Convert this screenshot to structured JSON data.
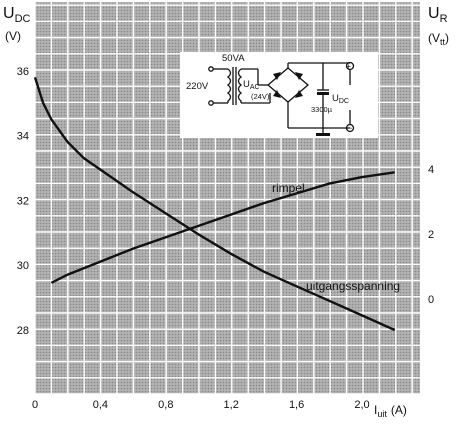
{
  "chart_data": {
    "type": "line",
    "x": {
      "label_main": "I",
      "label_sub": "uit",
      "unit": "(A)",
      "range": [
        0,
        2.2
      ],
      "ticks": [
        "0",
        "0,4",
        "0,8",
        "1,2",
        "1,6",
        "2,0"
      ]
    },
    "y_left": {
      "label_main": "U",
      "label_sub": "DC",
      "unit": "(V)",
      "range": [
        26.6,
        38.4
      ],
      "ticks": [
        "28",
        "30",
        "32",
        "34",
        "36"
      ]
    },
    "y_right": {
      "label_main": "U",
      "label_sub": "R",
      "unit_prefix": "(V",
      "unit_sub": "tt",
      "unit_suffix": ")",
      "range": [
        -4.4,
        7.6
      ],
      "ticks": [
        "0",
        "2",
        "4"
      ]
    },
    "grid": true,
    "series": [
      {
        "name": "uitgangsspanning",
        "axis": "left",
        "points": [
          [
            0.0,
            35.8
          ],
          [
            0.05,
            35.0
          ],
          [
            0.1,
            34.5
          ],
          [
            0.2,
            33.8
          ],
          [
            0.3,
            33.3
          ],
          [
            0.4,
            32.95
          ],
          [
            0.5,
            32.6
          ],
          [
            0.6,
            32.25
          ],
          [
            0.8,
            31.6
          ],
          [
            1.0,
            30.95
          ],
          [
            1.2,
            30.35
          ],
          [
            1.4,
            29.8
          ],
          [
            1.6,
            29.35
          ],
          [
            1.8,
            28.9
          ],
          [
            2.0,
            28.45
          ],
          [
            2.2,
            28.0
          ]
        ]
      },
      {
        "name": "rimpel",
        "axis": "right",
        "points": [
          [
            0.1,
            0.5
          ],
          [
            0.2,
            0.75
          ],
          [
            0.4,
            1.15
          ],
          [
            0.6,
            1.55
          ],
          [
            0.8,
            1.9
          ],
          [
            1.0,
            2.25
          ],
          [
            1.2,
            2.6
          ],
          [
            1.4,
            2.95
          ],
          [
            1.6,
            3.25
          ],
          [
            1.8,
            3.55
          ],
          [
            2.0,
            3.75
          ],
          [
            2.2,
            3.9
          ]
        ]
      }
    ]
  },
  "inset_schematic": {
    "texts": [
      "50VA",
      "220V",
      "U",
      "AC",
      "(24V)",
      "U",
      "DC",
      "3300µ"
    ],
    "terminal_plus": "+",
    "terminal_minus": "−"
  }
}
